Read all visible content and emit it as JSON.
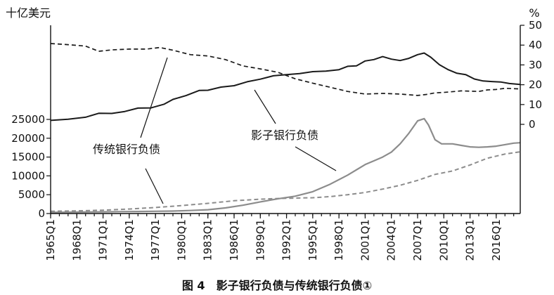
{
  "chart_data": {
    "type": "line",
    "caption": "图 4　影子银行负债与传统银行负债①",
    "left_axis": {
      "unit_label": "十亿美元",
      "ylim": [
        0,
        50000
      ],
      "ticks": [
        0,
        5000,
        10000,
        15000,
        20000,
        25000
      ],
      "tick_labels": [
        "0",
        "5000",
        "10000",
        "15000",
        "20000",
        "25000"
      ]
    },
    "right_axis": {
      "unit_label": "%",
      "ylim": [
        -45,
        50
      ],
      "ticks": [
        0,
        10,
        20,
        30,
        40,
        50
      ],
      "tick_labels": [
        "0",
        "10",
        "20",
        "30",
        "40",
        "50"
      ]
    },
    "xlim": [
      1965.0,
      2018.75
    ],
    "x_ticks": [
      1965,
      1968,
      1971,
      1974,
      1977,
      1980,
      1983,
      1986,
      1989,
      1992,
      1995,
      1998,
      2001,
      2004,
      2007,
      2010,
      2013,
      2016
    ],
    "x_tick_labels": [
      "1965Q1",
      "1968Q1",
      "1971Q1",
      "1974Q1",
      "1977Q1",
      "1980Q1",
      "1983Q1",
      "1986Q1",
      "1989Q1",
      "1992Q1",
      "1995Q1",
      "1998Q1",
      "2001Q1",
      "2004Q1",
      "2007Q1",
      "2010Q1",
      "2013Q1",
      "2016Q1"
    ],
    "annotations": [
      {
        "text": "传统银行负债"
      },
      {
        "text": "影子银行负债"
      }
    ],
    "series": [
      {
        "axis": "left",
        "style": "solid-gray",
        "x": [
          1965,
          1967,
          1969,
          1971,
          1973,
          1975,
          1977,
          1979,
          1981,
          1983,
          1985,
          1987,
          1989,
          1991,
          1993,
          1995,
          1997,
          1999,
          2001,
          2002,
          2003,
          2004,
          2005,
          2006,
          2007,
          2007.75,
          2008.25,
          2009,
          2009.75,
          2011,
          2012,
          2013,
          2014,
          2015,
          2016,
          2017,
          2018,
          2018.75
        ],
        "y": [
          300,
          350,
          400,
          450,
          500,
          550,
          600,
          650,
          800,
          1000,
          1500,
          2200,
          3100,
          3900,
          4600,
          5800,
          7800,
          10200,
          13000,
          14000,
          15000,
          16300,
          18500,
          21300,
          24600,
          25200,
          23500,
          19600,
          18500,
          18500,
          18100,
          17700,
          17600,
          17700,
          17900,
          18300,
          18700,
          18800
        ]
      },
      {
        "axis": "left",
        "style": "dashed-gray",
        "x": [
          1965,
          1968,
          1971,
          1974,
          1977,
          1980,
          1983,
          1986,
          1989,
          1991,
          1993,
          1995,
          1997,
          1999,
          2001,
          2003,
          2005,
          2007,
          2009,
          2011,
          2013,
          2015,
          2017,
          2018.75
        ],
        "y": [
          600,
          700,
          900,
          1200,
          1600,
          2100,
          2700,
          3400,
          3800,
          4000,
          4100,
          4200,
          4500,
          5000,
          5600,
          6500,
          7500,
          8800,
          10400,
          11300,
          12900,
          14700,
          15800,
          16400
        ]
      },
      {
        "axis": "right",
        "style": "solid-black",
        "x": [
          1965,
          1967,
          1969,
          1970.5,
          1972,
          1973.5,
          1975,
          1976.5,
          1978,
          1979,
          1980.5,
          1982,
          1983,
          1984.5,
          1986,
          1987.5,
          1989,
          1990.5,
          1992,
          1993.5,
          1995,
          1996.5,
          1998,
          1999,
          2000,
          2001,
          2002,
          2003,
          2004,
          2005,
          2006,
          2007,
          2007.75,
          2008.5,
          2009.5,
          2010.5,
          2011.5,
          2012.5,
          2013.5,
          2014.5,
          2015.5,
          2016.5,
          2017.5,
          2018.75
        ],
        "y": [
          2,
          2.6,
          3.6,
          5.6,
          5.5,
          6.5,
          8.2,
          8.3,
          10.2,
          12.6,
          14.5,
          17.1,
          17.2,
          18.8,
          19.5,
          21.5,
          22.8,
          24.5,
          25.1,
          25.6,
          26.6,
          26.9,
          27.6,
          29.3,
          29.5,
          32,
          32.7,
          34.2,
          32.9,
          32.2,
          33.3,
          35.2,
          36,
          33.9,
          30.1,
          27.6,
          25.8,
          25.1,
          22.9,
          21.9,
          21.6,
          21.4,
          20.6,
          20.1
        ]
      },
      {
        "axis": "right",
        "style": "dashed-black",
        "x": [
          1965,
          1967,
          1969,
          1970.5,
          1972,
          1974,
          1976,
          1977.5,
          1979,
          1981,
          1983,
          1985,
          1987,
          1989,
          1991,
          1993,
          1995,
          1997,
          1999,
          2001,
          2003,
          2005,
          2007,
          2008,
          2009,
          2010,
          2012,
          2014,
          2015,
          2016,
          2017,
          2018.75
        ],
        "y": [
          40.8,
          40.2,
          39.5,
          36.9,
          37.6,
          38,
          38,
          38.8,
          37.4,
          35.2,
          34.5,
          32.7,
          29.5,
          28,
          26.3,
          23,
          20.8,
          18.7,
          16.6,
          15.3,
          15.6,
          15.3,
          14.6,
          15.1,
          15.9,
          16.1,
          16.9,
          16.6,
          17.4,
          17.6,
          18.2,
          17.9
        ]
      }
    ]
  }
}
